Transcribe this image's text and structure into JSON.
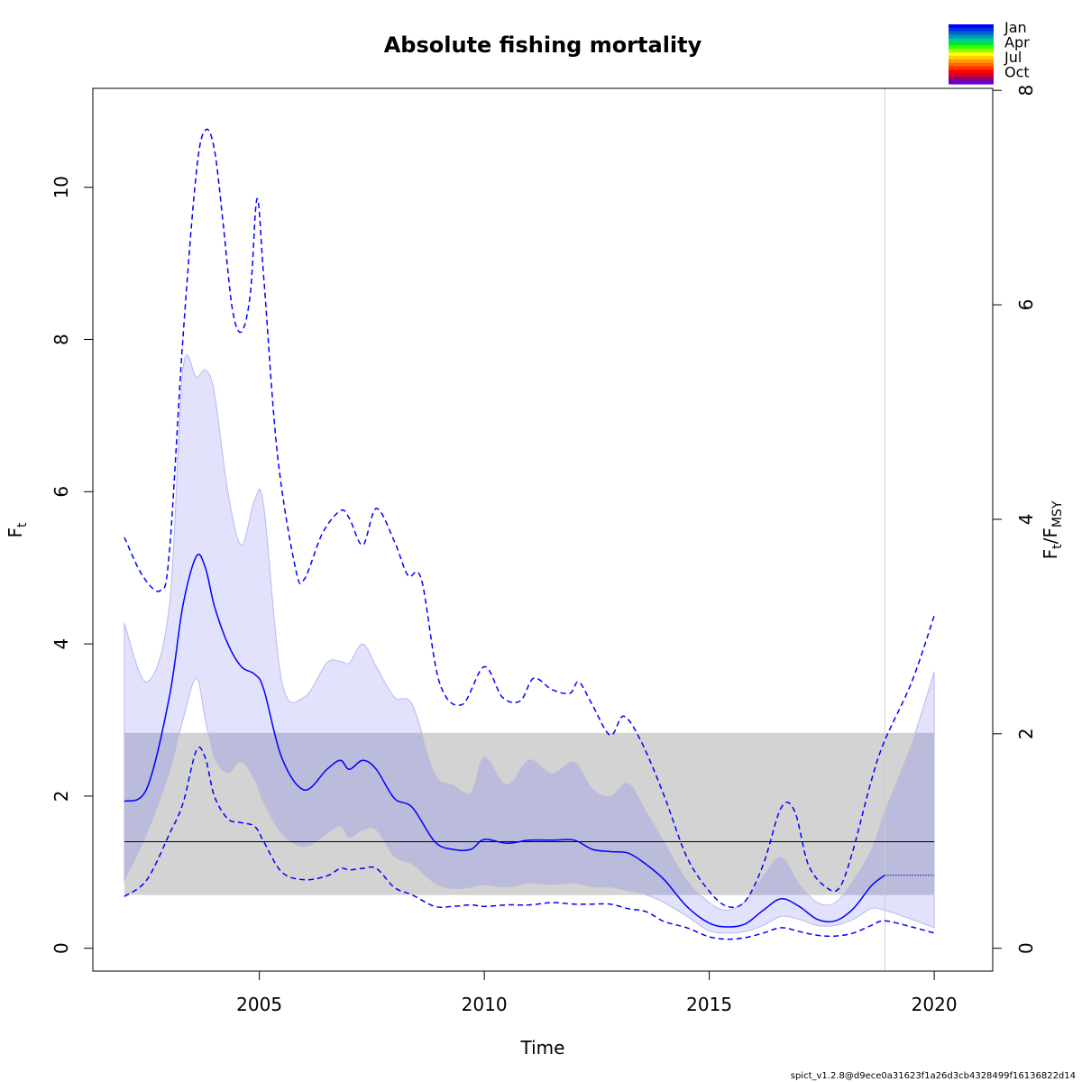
{
  "chart_data": {
    "type": "line",
    "title": "Absolute fishing mortality",
    "xlabel": "Time",
    "ylabel": "F",
    "ylabel_sub": "t",
    "y2label_main": "F",
    "y2label_sub1": "t",
    "y2label_sep": "/F",
    "y2label_sub2": "MSY",
    "xlim": [
      2001.3,
      2021.3
    ],
    "ylim": [
      -0.3,
      11.3
    ],
    "y2_per_y1": 0.7096,
    "xticks": [
      2005,
      2010,
      2015,
      2020
    ],
    "xtick_labels": [
      "2005",
      "2010",
      "2015",
      "2020"
    ],
    "yticks": [
      0,
      2,
      4,
      6,
      8,
      10
    ],
    "ytick_labels": [
      "0",
      "2",
      "4",
      "6",
      "8",
      "10"
    ],
    "y2ticks": [
      0,
      2,
      4,
      6,
      8
    ],
    "y2tick_labels": [
      "0",
      "2",
      "4",
      "6",
      "8"
    ],
    "fmsy_line": 1.4,
    "fmsy_band": [
      0.7,
      2.83
    ],
    "vline_x": 2018.9,
    "colors": {
      "estimate": "#0000ff",
      "ci": "#e2e2fc",
      "band": "#d3d3d3",
      "overlap": "#bbbbdb"
    },
    "estimate": {
      "x": [
        2002.0,
        2002.5,
        2003.0,
        2003.3,
        2003.6,
        2003.8,
        2004.0,
        2004.3,
        2004.6,
        2004.9,
        2005.1,
        2005.5,
        2006.0,
        2006.5,
        2006.8,
        2007.0,
        2007.3,
        2007.6,
        2008.0,
        2008.4,
        2008.9,
        2009.3,
        2009.7,
        2010.0,
        2010.5,
        2011.0,
        2011.5,
        2012.0,
        2012.4,
        2012.8,
        2013.2,
        2013.6,
        2014.0,
        2014.5,
        2015.0,
        2015.4,
        2015.8,
        2016.2,
        2016.6,
        2017.0,
        2017.4,
        2017.8,
        2018.2,
        2018.6,
        2018.9
      ],
      "y": [
        1.93,
        2.1,
        3.3,
        4.5,
        5.15,
        5.0,
        4.5,
        4.0,
        3.7,
        3.6,
        3.4,
        2.5,
        2.08,
        2.35,
        2.47,
        2.35,
        2.47,
        2.35,
        1.97,
        1.85,
        1.4,
        1.3,
        1.3,
        1.43,
        1.38,
        1.42,
        1.42,
        1.42,
        1.3,
        1.27,
        1.25,
        1.1,
        0.9,
        0.55,
        0.33,
        0.28,
        0.32,
        0.5,
        0.65,
        0.55,
        0.38,
        0.36,
        0.52,
        0.82,
        0.96
      ]
    },
    "projection": {
      "x": [
        2018.9,
        2020.0
      ],
      "y": [
        0.96,
        0.96
      ]
    },
    "ci_lower": {
      "x": [
        2002.0,
        2002.5,
        2003.0,
        2003.3,
        2003.6,
        2003.8,
        2004.0,
        2004.3,
        2004.6,
        2004.9,
        2005.1,
        2005.5,
        2006.0,
        2006.5,
        2006.8,
        2007.0,
        2007.3,
        2007.6,
        2008.0,
        2008.4,
        2008.9,
        2009.3,
        2009.7,
        2010.0,
        2010.5,
        2011.0,
        2011.5,
        2012.0,
        2012.4,
        2012.8,
        2013.2,
        2013.6,
        2014.0,
        2014.5,
        2015.0,
        2015.4,
        2015.8,
        2016.2,
        2016.6,
        2017.0,
        2017.4,
        2017.8,
        2018.2,
        2018.6,
        2018.9,
        2019.5,
        2020.0
      ],
      "y": [
        0.88,
        1.5,
        2.3,
        3.0,
        3.55,
        3.0,
        2.5,
        2.3,
        2.45,
        2.2,
        1.9,
        1.5,
        1.33,
        1.5,
        1.6,
        1.45,
        1.55,
        1.55,
        1.2,
        1.1,
        0.85,
        0.78,
        0.8,
        0.83,
        0.8,
        0.85,
        0.83,
        0.85,
        0.8,
        0.8,
        0.75,
        0.7,
        0.6,
        0.42,
        0.23,
        0.2,
        0.22,
        0.3,
        0.42,
        0.38,
        0.3,
        0.3,
        0.38,
        0.52,
        0.5,
        0.38,
        0.27
      ]
    },
    "ci_upper": {
      "x": [
        2002.0,
        2002.5,
        2003.0,
        2003.3,
        2003.6,
        2003.8,
        2004.0,
        2004.3,
        2004.6,
        2004.9,
        2005.1,
        2005.5,
        2006.0,
        2006.5,
        2006.8,
        2007.0,
        2007.3,
        2007.6,
        2008.0,
        2008.4,
        2008.9,
        2009.3,
        2009.7,
        2010.0,
        2010.5,
        2011.0,
        2011.5,
        2012.0,
        2012.4,
        2012.8,
        2013.2,
        2013.6,
        2014.0,
        2014.5,
        2015.0,
        2015.4,
        2015.8,
        2016.2,
        2016.6,
        2017.0,
        2017.4,
        2017.8,
        2018.2,
        2018.6,
        2018.9,
        2019.5,
        2020.0
      ],
      "y": [
        4.27,
        3.5,
        4.5,
        7.6,
        7.5,
        7.6,
        7.3,
        6.0,
        5.3,
        5.9,
        5.8,
        3.5,
        3.3,
        3.75,
        3.77,
        3.75,
        4.0,
        3.7,
        3.3,
        3.2,
        2.3,
        2.15,
        2.05,
        2.52,
        2.15,
        2.48,
        2.3,
        2.45,
        2.1,
        2.0,
        2.17,
        1.8,
        1.4,
        0.9,
        0.6,
        0.5,
        0.62,
        0.95,
        1.2,
        0.85,
        0.6,
        0.6,
        0.9,
        1.3,
        1.8,
        2.7,
        3.63
      ]
    },
    "bound_lower": {
      "x": [
        2002.0,
        2002.5,
        2003.0,
        2003.3,
        2003.6,
        2003.8,
        2004.0,
        2004.3,
        2004.6,
        2004.9,
        2005.1,
        2005.5,
        2006.0,
        2006.5,
        2006.8,
        2007.0,
        2007.3,
        2007.6,
        2008.0,
        2008.4,
        2008.9,
        2009.3,
        2009.7,
        2010.0,
        2010.5,
        2011.0,
        2011.5,
        2012.0,
        2012.4,
        2012.8,
        2013.2,
        2013.6,
        2014.0,
        2014.5,
        2015.0,
        2015.4,
        2015.8,
        2016.2,
        2016.6,
        2017.0,
        2017.4,
        2017.8,
        2018.2,
        2018.6,
        2018.9,
        2019.5,
        2020.0
      ],
      "y": [
        0.68,
        0.9,
        1.5,
        1.9,
        2.6,
        2.5,
        2.0,
        1.7,
        1.65,
        1.6,
        1.4,
        1.0,
        0.9,
        0.95,
        1.05,
        1.03,
        1.05,
        1.05,
        0.8,
        0.7,
        0.55,
        0.55,
        0.57,
        0.55,
        0.57,
        0.57,
        0.6,
        0.58,
        0.58,
        0.58,
        0.52,
        0.48,
        0.35,
        0.27,
        0.15,
        0.12,
        0.14,
        0.2,
        0.27,
        0.22,
        0.17,
        0.16,
        0.2,
        0.3,
        0.36,
        0.28,
        0.2
      ]
    },
    "bound_upper": {
      "x": [
        2002.0,
        2002.4,
        2002.8,
        2003.0,
        2003.3,
        2003.6,
        2003.8,
        2004.0,
        2004.2,
        2004.4,
        2004.6,
        2004.8,
        2004.95,
        2005.1,
        2005.4,
        2005.8,
        2006.0,
        2006.4,
        2006.8,
        2007.0,
        2007.3,
        2007.6,
        2008.0,
        2008.3,
        2008.6,
        2009.0,
        2009.5,
        2010.0,
        2010.4,
        2010.8,
        2011.1,
        2011.5,
        2011.9,
        2012.1,
        2012.4,
        2012.8,
        2013.1,
        2013.5,
        2014.0,
        2014.5,
        2015.0,
        2015.4,
        2015.8,
        2016.2,
        2016.6,
        2016.9,
        2017.2,
        2017.6,
        2017.9,
        2018.2,
        2018.6,
        2018.9,
        2019.5,
        2020.0
      ],
      "y": [
        5.4,
        4.9,
        4.7,
        5.2,
        8.0,
        10.2,
        10.75,
        10.5,
        9.5,
        8.4,
        8.1,
        8.6,
        9.85,
        8.8,
        6.5,
        5.0,
        4.85,
        5.45,
        5.75,
        5.65,
        5.3,
        5.78,
        5.35,
        4.9,
        4.85,
        3.5,
        3.2,
        3.7,
        3.3,
        3.25,
        3.55,
        3.4,
        3.35,
        3.5,
        3.2,
        2.8,
        3.05,
        2.7,
        2.0,
        1.2,
        0.75,
        0.55,
        0.62,
        1.1,
        1.85,
        1.8,
        1.1,
        0.8,
        0.8,
        1.3,
        2.2,
        2.73,
        3.5,
        4.37
      ]
    },
    "legend": {
      "labels": [
        "Jan",
        "Apr",
        "Jul",
        "Oct"
      ],
      "colors": [
        "#0000ff",
        "#0033e6",
        "#0066cc",
        "#0099b3",
        "#00cc99",
        "#00e633",
        "#33ff00",
        "#99ff00",
        "#ffff00",
        "#ffcc00",
        "#ff9900",
        "#ff6600",
        "#ff3300",
        "#ff0000",
        "#cc0033",
        "#990066",
        "#6600cc"
      ]
    },
    "footer": "spict_v1.2.8@d9ece0a31623f1a26d3cb4328499f16136822d14"
  }
}
